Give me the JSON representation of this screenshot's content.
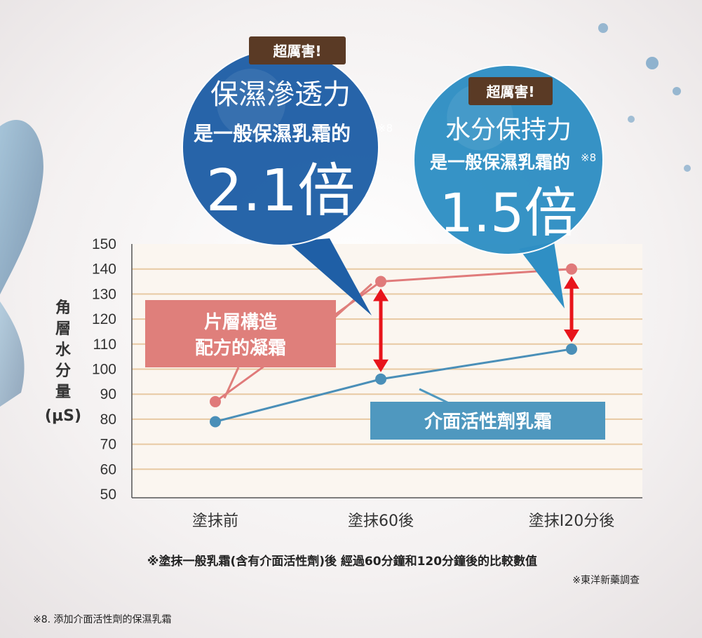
{
  "chart_data": {
    "type": "line",
    "categories": [
      "塗抹前",
      "塗抹60後",
      "塗抹I20分後"
    ],
    "series": [
      {
        "name": "片層構造配方的凝霜",
        "values": [
          87,
          135,
          140
        ],
        "color": "#e07a7a"
      },
      {
        "name": "介面活性劑乳霜",
        "values": [
          79,
          96,
          108
        ],
        "color": "#4a8fb8"
      }
    ],
    "ylim": [
      50,
      150
    ],
    "yticks": [
      50,
      60,
      70,
      80,
      90,
      100,
      110,
      120,
      130,
      140,
      150
    ],
    "ylabel_chars": [
      "角",
      "層",
      "水",
      "分",
      "量"
    ],
    "ylabel_unit": "(µS)",
    "grid": true,
    "legend_boxes": {
      "series1_lines": [
        "片層構造",
        "配方的凝霜"
      ],
      "series2_line": "介面活性劑乳霜",
      "series1_color": "#df7f7b",
      "series2_color": "#4f98bf"
    },
    "callouts": [
      {
        "badge": "超厲害!",
        "line1": "保濕滲透力",
        "line2": "是一般保濕乳霜的",
        "sup": "※8",
        "big": "2.1倍",
        "color": "#1f5fa6"
      },
      {
        "badge": "超厲害!",
        "line1": "水分保持力",
        "line2": "是一般保濕乳霜的",
        "sup": "※8",
        "big": "1.5倍",
        "color": "#2f8fc4"
      }
    ],
    "arrow_color": "#e8141b",
    "badge_color": "#5a3a25"
  },
  "notes": {
    "comparison": "※塗抹一般乳霜(含有介面活性劑)後 經過60分鐘和120分鐘後的比較數值",
    "survey": "※東洋新藥調查",
    "footnote": "※8. 添加介面活性劑的保濕乳霜"
  }
}
